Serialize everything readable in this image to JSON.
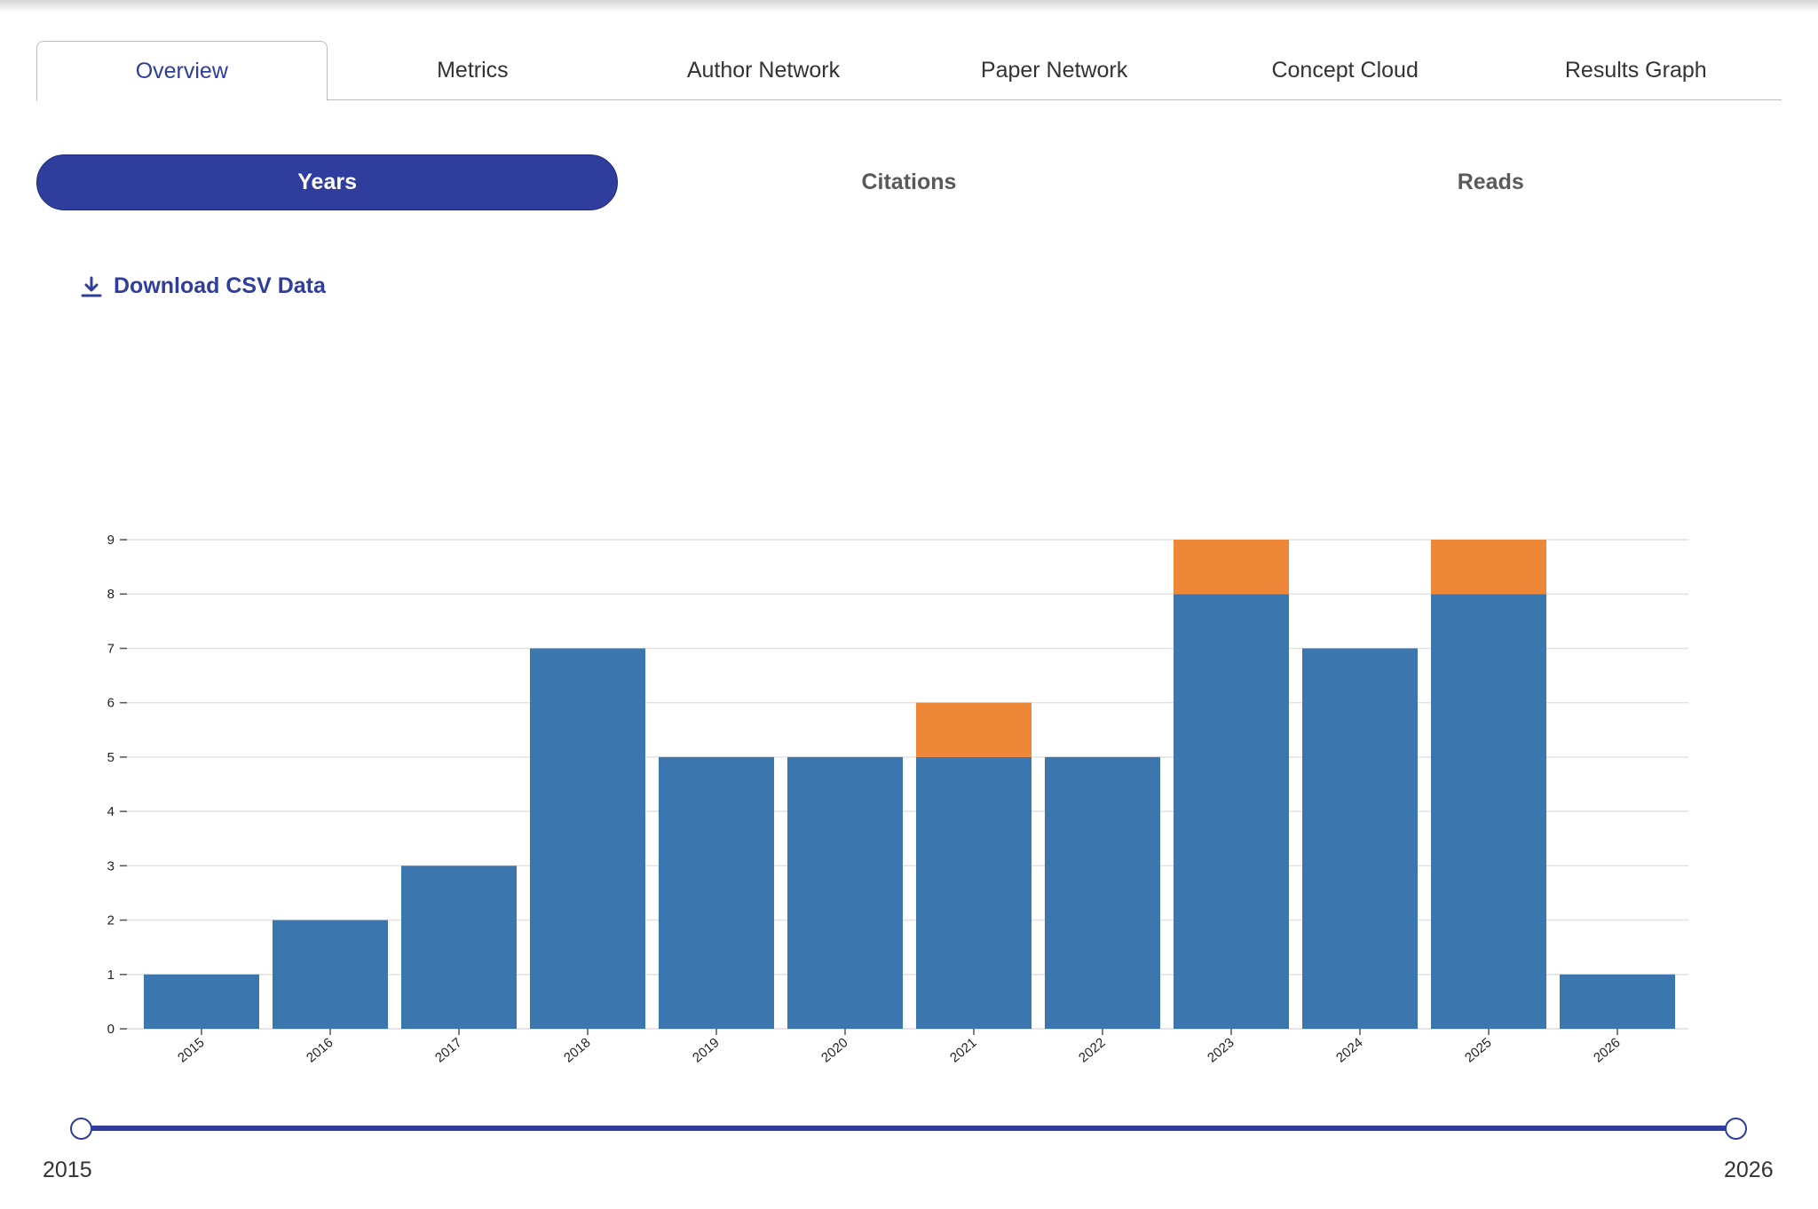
{
  "tabs": [
    {
      "label": "Overview",
      "active": true
    },
    {
      "label": "Metrics",
      "active": false
    },
    {
      "label": "Author Network",
      "active": false
    },
    {
      "label": "Paper Network",
      "active": false
    },
    {
      "label": "Concept Cloud",
      "active": false
    },
    {
      "label": "Results Graph",
      "active": false
    }
  ],
  "segments": [
    {
      "label": "Years",
      "active": true
    },
    {
      "label": "Citations",
      "active": false
    },
    {
      "label": "Reads",
      "active": false
    }
  ],
  "download": {
    "label": "Download CSV Data",
    "icon": "download-icon"
  },
  "colors": {
    "accent": "#2f3d9c",
    "series_primary": "#3b76ae",
    "series_secondary": "#ee8738"
  },
  "chart_data": {
    "type": "bar",
    "stacked": true,
    "categories": [
      "2015",
      "2016",
      "2017",
      "2018",
      "2019",
      "2020",
      "2021",
      "2022",
      "2023",
      "2024",
      "2025",
      "2026"
    ],
    "series": [
      {
        "values": [
          1,
          2,
          3,
          7,
          5,
          5,
          5,
          5,
          8,
          7,
          8,
          1
        ],
        "color": "#3b76ae"
      },
      {
        "values": [
          0,
          0,
          0,
          0,
          0,
          0,
          1,
          0,
          1,
          0,
          1,
          0
        ],
        "color": "#ee8738"
      }
    ],
    "ylim": [
      0,
      9
    ],
    "yticks": [
      "0",
      "1",
      "2",
      "3",
      "4",
      "5",
      "6",
      "7",
      "8",
      "9"
    ],
    "grid": true
  },
  "range": {
    "min": "2015",
    "max": "2026"
  }
}
